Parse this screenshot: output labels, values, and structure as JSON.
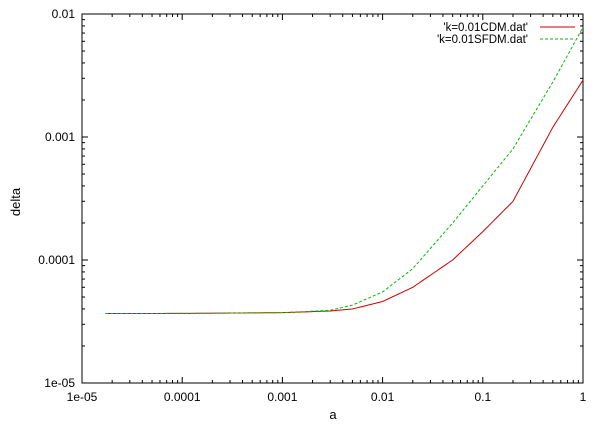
{
  "chart_data": {
    "type": "line",
    "title": "",
    "xlabel": "a",
    "ylabel": "delta",
    "xscale": "log",
    "yscale": "log",
    "xlim": [
      1e-05,
      1
    ],
    "ylim": [
      1e-05,
      0.01
    ],
    "xticks": [
      "1e-05",
      "0.0001",
      "0.001",
      "0.01",
      "0.1",
      "1"
    ],
    "yticks": [
      "1e-05",
      "0.0001",
      "0.001",
      "0.01"
    ],
    "grid": false,
    "legend_position": "top-right",
    "series": [
      {
        "name": "'k=0.01CDM.dat'",
        "color": "#cc0000",
        "style": "solid",
        "x": [
          1.71e-05,
          0.0001,
          0.001,
          0.003,
          0.005,
          0.01,
          0.02,
          0.05,
          0.1,
          0.2,
          0.5,
          1.0
        ],
        "y": [
          3.67e-05,
          3.68e-05,
          3.73e-05,
          3.85e-05,
          4e-05,
          4.6e-05,
          6e-05,
          0.0001,
          0.00017,
          0.0003,
          0.0012,
          0.0029
        ]
      },
      {
        "name": "'k=0.01SFDM.dat'",
        "color": "#00bb00",
        "style": "dashed",
        "x": [
          1.71e-05,
          0.0001,
          0.001,
          0.003,
          0.005,
          0.01,
          0.02,
          0.05,
          0.1,
          0.2,
          0.5,
          1.0
        ],
        "y": [
          3.67e-05,
          3.68e-05,
          3.73e-05,
          3.9e-05,
          4.3e-05,
          5.5e-05,
          8.5e-05,
          0.0002,
          0.0004,
          0.0008,
          0.0028,
          0.0078
        ]
      }
    ]
  }
}
